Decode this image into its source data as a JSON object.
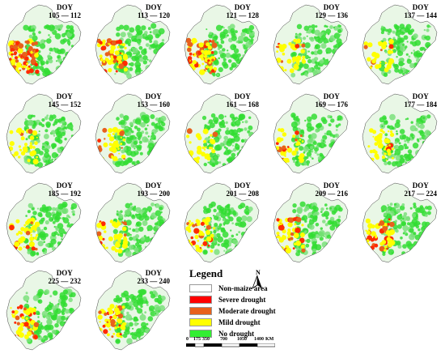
{
  "panels": [
    {
      "doy_label": "DOY",
      "range": "105 — 112",
      "severity": 0.95
    },
    {
      "doy_label": "DOY",
      "range": "113 — 120",
      "severity": 0.6
    },
    {
      "doy_label": "DOY",
      "range": "121 — 128",
      "severity": 0.7
    },
    {
      "doy_label": "DOY",
      "range": "129 — 136",
      "severity": 0.25
    },
    {
      "doy_label": "DOY",
      "range": "137 — 144",
      "severity": 0.2
    },
    {
      "doy_label": "DOY",
      "range": "145 — 152",
      "severity": 0.2
    },
    {
      "doy_label": "DOY",
      "range": "153 — 160",
      "severity": 0.25
    },
    {
      "doy_label": "DOY",
      "range": "161 — 168",
      "severity": 0.15
    },
    {
      "doy_label": "DOY",
      "range": "169 — 176",
      "severity": 0.2
    },
    {
      "doy_label": "DOY",
      "range": "177 — 184",
      "severity": 0.3
    },
    {
      "doy_label": "DOY",
      "range": "185 — 192",
      "severity": 0.3
    },
    {
      "doy_label": "DOY",
      "range": "193 — 200",
      "severity": 0.3
    },
    {
      "doy_label": "DOY",
      "range": "201 — 208",
      "severity": 0.3
    },
    {
      "doy_label": "DOY",
      "range": "209 — 216",
      "severity": 0.45
    },
    {
      "doy_label": "DOY",
      "range": "217 — 224",
      "severity": 0.5
    },
    {
      "doy_label": "DOY",
      "range": "225 — 232",
      "severity": 0.45
    },
    {
      "doy_label": "DOY",
      "range": "233 — 240",
      "severity": 0.45
    }
  ],
  "legend": {
    "title": "Legend",
    "items": [
      {
        "label": "Non-maize area",
        "color": "#ffffff"
      },
      {
        "label": "Severe drought",
        "color": "#ff0000"
      },
      {
        "label": "Moderate drought",
        "color": "#e8601c"
      },
      {
        "label": "Mild drought",
        "color": "#ffff00"
      },
      {
        "label": "No drought",
        "color": "#33ee33"
      }
    ],
    "north_label": "N",
    "scale_ticks": [
      "0",
      "175",
      "350",
      "700",
      "1050",
      "1400"
    ],
    "scale_unit": "KM"
  }
}
